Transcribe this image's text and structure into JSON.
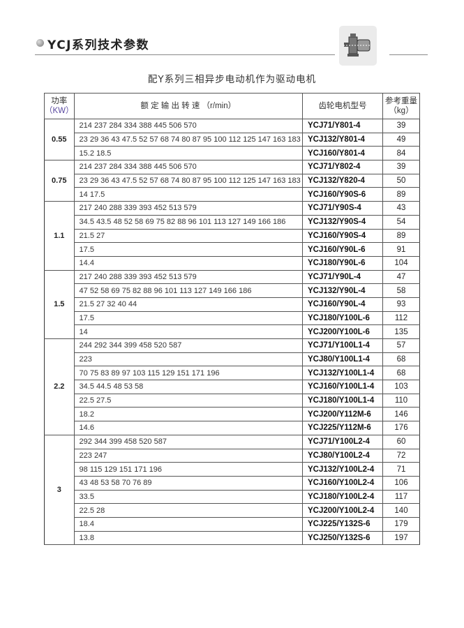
{
  "header": {
    "title": "YCJ系列技术参数",
    "icon": "gear-motor-icon"
  },
  "subtitle": "配Y系列三相异步电动机作为驱动电机",
  "table": {
    "columns": {
      "power": "功率",
      "power_unit": "（KW）",
      "speed": "额 定 输 出 转 速 （r/min）",
      "model": "齿轮电机型号",
      "weight": "参考重量",
      "weight_unit": "（kg）"
    },
    "groups": [
      {
        "power": "0.55",
        "rows": [
          {
            "speed": "214 237 284 334 388 445 506 570",
            "model": "YCJ71/Y801-4",
            "weight": "39"
          },
          {
            "speed": "23 29 36 43 47.5 52 57 68 74 80 87 95 100 112 125 147 163 183",
            "model": "YCJ132/Y801-4",
            "weight": "49"
          },
          {
            "speed": "15.2 18.5",
            "model": "YCJ160/Y801-4",
            "weight": "84"
          }
        ]
      },
      {
        "power": "0.75",
        "rows": [
          {
            "speed": "214 237 284 334 388 445 506 570",
            "model": "YCJ71/Y802-4",
            "weight": "39"
          },
          {
            "speed": "23 29 36 43 47.5 52 57 68 74 80 87 95 100 112 125 147 163 183",
            "model": "YCJ132/Y820-4",
            "weight": "50"
          },
          {
            "speed": "14 17.5",
            "model": "YCJ160/Y90S-6",
            "weight": "89"
          }
        ]
      },
      {
        "power": "1.1",
        "rows": [
          {
            "speed": "217 240 288 339 393 452 513 579",
            "model": "YCJ71/Y90S-4",
            "weight": "43"
          },
          {
            "speed": "34.5 43.5 48 52 58 69 75 82 88 96 101 113 127 149 166 186",
            "model": "YCJ132/Y90S-4",
            "weight": "54"
          },
          {
            "speed": "21.5 27",
            "model": "YCJ160/Y90S-4",
            "weight": "89"
          },
          {
            "speed": "17.5",
            "model": "YCJ160/Y90L-6",
            "weight": "91"
          },
          {
            "speed": "14.4",
            "model": "YCJ180/Y90L-6",
            "weight": "104"
          }
        ]
      },
      {
        "power": "1.5",
        "rows": [
          {
            "speed": "217 240 288 339 393 452 513 579",
            "model": "YCJ71/Y90L-4",
            "weight": "47"
          },
          {
            "speed": "47 52 58 69 75 82 88 96 101 113 127 149 166 186",
            "model": "YCJ132/Y90L-4",
            "weight": "58"
          },
          {
            "speed": "21.5 27 32 40 44",
            "model": "YCJ160/Y90L-4",
            "weight": "93"
          },
          {
            "speed": "17.5",
            "model": "YCJ180/Y100L-6",
            "weight": "112"
          },
          {
            "speed": "14",
            "model": "YCJ200/Y100L-6",
            "weight": "135"
          }
        ]
      },
      {
        "power": "2.2",
        "rows": [
          {
            "speed": "244 292 344 399 458 520 587",
            "model": "YCJ71/Y100L1-4",
            "weight": "57"
          },
          {
            "speed": "223",
            "model": "YCJ80/Y100L1-4",
            "weight": "68"
          },
          {
            "speed": "70 75 83 89 97 103 115 129 151 171 196",
            "model": "YCJ132/Y100L1-4",
            "weight": "68"
          },
          {
            "speed": "34.5 44.5 48 53 58",
            "model": "YCJ160/Y100L1-4",
            "weight": "103"
          },
          {
            "speed": "22.5 27.5",
            "model": "YCJ180/Y100L1-4",
            "weight": "110"
          },
          {
            "speed": "18.2",
            "model": "YCJ200/Y112M-6",
            "weight": "146"
          },
          {
            "speed": "14.6",
            "model": "YCJ225/Y112M-6",
            "weight": "176"
          }
        ]
      },
      {
        "power": "3",
        "rows": [
          {
            "speed": "292 344 399 458 520 587",
            "model": "YCJ71/Y100L2-4",
            "weight": "60"
          },
          {
            "speed": "223 247",
            "model": "YCJ80/Y100L2-4",
            "weight": "72"
          },
          {
            "speed": "98 115 129 151 171 196",
            "model": "YCJ132/Y100L2-4",
            "weight": "71"
          },
          {
            "speed": "43 48 53 58 70 76 89",
            "model": "YCJ160/Y100L2-4",
            "weight": "106"
          },
          {
            "speed": "33.5",
            "model": "YCJ180/Y100L2-4",
            "weight": "117"
          },
          {
            "speed": "22.5 28",
            "model": "YCJ200/Y100L2-4",
            "weight": "140"
          },
          {
            "speed": "18.4",
            "model": "YCJ225/Y132S-6",
            "weight": "179"
          },
          {
            "speed": "13.8",
            "model": "YCJ250/Y132S-6",
            "weight": "197"
          }
        ]
      }
    ]
  }
}
